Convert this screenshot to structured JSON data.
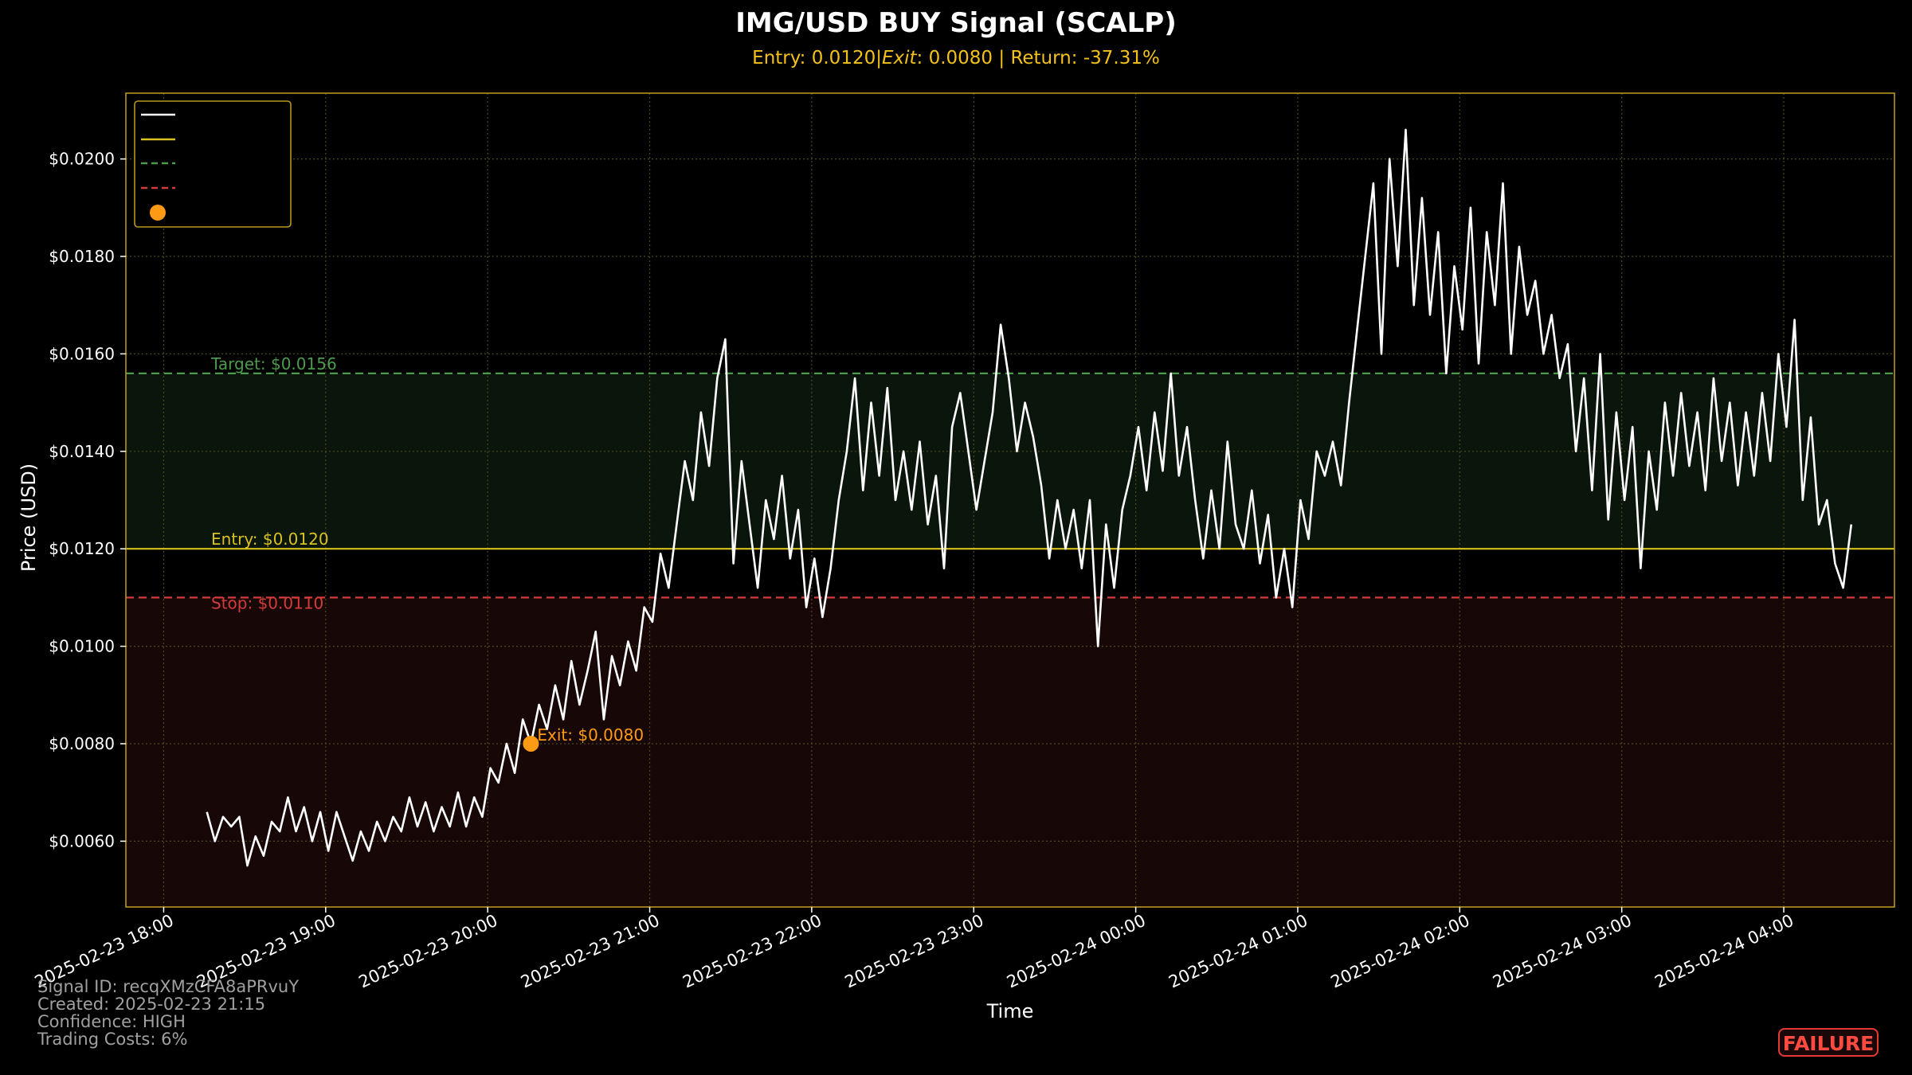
{
  "chart_data": {
    "type": "line",
    "title": "IMG/USD BUY Signal (SCALP)",
    "subtitle": {
      "entry_text": "Entry: 0.0120|",
      "exit_label": "Exit",
      "exit_text": ": 0.0080 | Return: -37.31%"
    },
    "xlabel": "Time",
    "ylabel": "Price (USD)",
    "x_range": [
      "2025-02-23 17:46",
      "2025-02-24 04:41"
    ],
    "ylim": [
      0.00465,
      0.02135
    ],
    "y_ticks": [
      0.006,
      0.008,
      0.01,
      0.012,
      0.014,
      0.016,
      0.018,
      0.02
    ],
    "y_tick_labels": [
      "$0.0060",
      "$0.0080",
      "$0.0100",
      "$0.0120",
      "$0.0140",
      "$0.0160",
      "$0.0180",
      "$0.0200"
    ],
    "x_ticks": [
      "2025-02-23 18:00",
      "2025-02-23 19:00",
      "2025-02-23 20:00",
      "2025-02-23 21:00",
      "2025-02-23 22:00",
      "2025-02-23 23:00",
      "2025-02-24 00:00",
      "2025-02-24 01:00",
      "2025-02-24 02:00",
      "2025-02-24 03:00",
      "2025-02-24 04:00"
    ],
    "x_tick_labels": [
      "2025-02-23 18:00",
      "2025-02-23 19:00",
      "2025-02-23 20:00",
      "2025-02-23 21:00",
      "2025-02-23 22:00",
      "2025-02-23 23:00",
      "2025-02-24 00:00",
      "2025-02-24 01:00",
      "2025-02-24 02:00",
      "2025-02-24 03:00",
      "2025-02-24 04:00"
    ],
    "grid": true,
    "legend": {
      "placement": "top-left",
      "entries": [
        "",
        "",
        "",
        "",
        ""
      ]
    },
    "levels": {
      "target": {
        "value": 0.0156,
        "label": "Target: $0.0156"
      },
      "entry": {
        "value": 0.012,
        "label": "Entry: $0.0120"
      },
      "stop": {
        "value": 0.011,
        "label": "Stop: $0.0110"
      }
    },
    "exit_point": {
      "x": "2025-02-23 20:16",
      "y": 0.008,
      "label": "Exit: $0.0080"
    },
    "series": [
      {
        "values": [
          [
            "2025-02-23 18:16",
            0.0066
          ],
          [
            "2025-02-23 18:19",
            0.006
          ],
          [
            "2025-02-23 18:22",
            0.0065
          ],
          [
            "2025-02-23 18:25",
            0.0063
          ],
          [
            "2025-02-23 18:28",
            0.0065
          ],
          [
            "2025-02-23 18:31",
            0.0055
          ],
          [
            "2025-02-23 18:34",
            0.0061
          ],
          [
            "2025-02-23 18:37",
            0.0057
          ],
          [
            "2025-02-23 18:40",
            0.0064
          ],
          [
            "2025-02-23 18:43",
            0.0062
          ],
          [
            "2025-02-23 18:46",
            0.0069
          ],
          [
            "2025-02-23 18:49",
            0.0062
          ],
          [
            "2025-02-23 18:52",
            0.0067
          ],
          [
            "2025-02-23 18:55",
            0.006
          ],
          [
            "2025-02-23 18:58",
            0.0066
          ],
          [
            "2025-02-23 19:01",
            0.0058
          ],
          [
            "2025-02-23 19:04",
            0.0066
          ],
          [
            "2025-02-23 19:07",
            0.0061
          ],
          [
            "2025-02-23 19:10",
            0.0056
          ],
          [
            "2025-02-23 19:13",
            0.0062
          ],
          [
            "2025-02-23 19:16",
            0.0058
          ],
          [
            "2025-02-23 19:19",
            0.0064
          ],
          [
            "2025-02-23 19:22",
            0.006
          ],
          [
            "2025-02-23 19:25",
            0.0065
          ],
          [
            "2025-02-23 19:28",
            0.0062
          ],
          [
            "2025-02-23 19:31",
            0.0069
          ],
          [
            "2025-02-23 19:34",
            0.0063
          ],
          [
            "2025-02-23 19:37",
            0.0068
          ],
          [
            "2025-02-23 19:40",
            0.0062
          ],
          [
            "2025-02-23 19:43",
            0.0067
          ],
          [
            "2025-02-23 19:46",
            0.0063
          ],
          [
            "2025-02-23 19:49",
            0.007
          ],
          [
            "2025-02-23 19:52",
            0.0063
          ],
          [
            "2025-02-23 19:55",
            0.0069
          ],
          [
            "2025-02-23 19:58",
            0.0065
          ],
          [
            "2025-02-23 20:01",
            0.0075
          ],
          [
            "2025-02-23 20:04",
            0.0072
          ],
          [
            "2025-02-23 20:07",
            0.008
          ],
          [
            "2025-02-23 20:10",
            0.0074
          ],
          [
            "2025-02-23 20:13",
            0.0085
          ],
          [
            "2025-02-23 20:16",
            0.008
          ],
          [
            "2025-02-23 20:19",
            0.0088
          ],
          [
            "2025-02-23 20:22",
            0.0083
          ],
          [
            "2025-02-23 20:25",
            0.0092
          ],
          [
            "2025-02-23 20:28",
            0.0085
          ],
          [
            "2025-02-23 20:31",
            0.0097
          ],
          [
            "2025-02-23 20:34",
            0.0088
          ],
          [
            "2025-02-23 20:37",
            0.0095
          ],
          [
            "2025-02-23 20:40",
            0.0103
          ],
          [
            "2025-02-23 20:43",
            0.0085
          ],
          [
            "2025-02-23 20:46",
            0.0098
          ],
          [
            "2025-02-23 20:49",
            0.0092
          ],
          [
            "2025-02-23 20:52",
            0.0101
          ],
          [
            "2025-02-23 20:55",
            0.0095
          ],
          [
            "2025-02-23 20:58",
            0.0108
          ],
          [
            "2025-02-23 21:01",
            0.0105
          ],
          [
            "2025-02-23 21:04",
            0.0119
          ],
          [
            "2025-02-23 21:07",
            0.0112
          ],
          [
            "2025-02-23 21:10",
            0.0125
          ],
          [
            "2025-02-23 21:13",
            0.0138
          ],
          [
            "2025-02-23 21:16",
            0.013
          ],
          [
            "2025-02-23 21:19",
            0.0148
          ],
          [
            "2025-02-23 21:22",
            0.0137
          ],
          [
            "2025-02-23 21:25",
            0.0155
          ],
          [
            "2025-02-23 21:28",
            0.0163
          ],
          [
            "2025-02-23 21:31",
            0.0117
          ],
          [
            "2025-02-23 21:34",
            0.0138
          ],
          [
            "2025-02-23 21:37",
            0.0125
          ],
          [
            "2025-02-23 21:40",
            0.0112
          ],
          [
            "2025-02-23 21:43",
            0.013
          ],
          [
            "2025-02-23 21:46",
            0.0122
          ],
          [
            "2025-02-23 21:49",
            0.0135
          ],
          [
            "2025-02-23 21:52",
            0.0118
          ],
          [
            "2025-02-23 21:55",
            0.0128
          ],
          [
            "2025-02-23 21:58",
            0.0108
          ],
          [
            "2025-02-23 22:01",
            0.0118
          ],
          [
            "2025-02-23 22:04",
            0.0106
          ],
          [
            "2025-02-23 22:07",
            0.0116
          ],
          [
            "2025-02-23 22:10",
            0.013
          ],
          [
            "2025-02-23 22:13",
            0.014
          ],
          [
            "2025-02-23 22:16",
            0.0155
          ],
          [
            "2025-02-23 22:19",
            0.0132
          ],
          [
            "2025-02-23 22:22",
            0.015
          ],
          [
            "2025-02-23 22:25",
            0.0135
          ],
          [
            "2025-02-23 22:28",
            0.0153
          ],
          [
            "2025-02-23 22:31",
            0.013
          ],
          [
            "2025-02-23 22:34",
            0.014
          ],
          [
            "2025-02-23 22:37",
            0.0128
          ],
          [
            "2025-02-23 22:40",
            0.0142
          ],
          [
            "2025-02-23 22:43",
            0.0125
          ],
          [
            "2025-02-23 22:46",
            0.0135
          ],
          [
            "2025-02-23 22:49",
            0.0116
          ],
          [
            "2025-02-23 22:52",
            0.0145
          ],
          [
            "2025-02-23 22:55",
            0.0152
          ],
          [
            "2025-02-23 22:58",
            0.014
          ],
          [
            "2025-02-23 23:01",
            0.0128
          ],
          [
            "2025-02-23 23:04",
            0.0138
          ],
          [
            "2025-02-23 23:07",
            0.0148
          ],
          [
            "2025-02-23 23:10",
            0.0166
          ],
          [
            "2025-02-23 23:13",
            0.0155
          ],
          [
            "2025-02-23 23:16",
            0.014
          ],
          [
            "2025-02-23 23:19",
            0.015
          ],
          [
            "2025-02-23 23:22",
            0.0143
          ],
          [
            "2025-02-23 23:25",
            0.0133
          ],
          [
            "2025-02-23 23:28",
            0.0118
          ],
          [
            "2025-02-23 23:31",
            0.013
          ],
          [
            "2025-02-23 23:34",
            0.012
          ],
          [
            "2025-02-23 23:37",
            0.0128
          ],
          [
            "2025-02-23 23:40",
            0.0116
          ],
          [
            "2025-02-23 23:43",
            0.013
          ],
          [
            "2025-02-23 23:46",
            0.01
          ],
          [
            "2025-02-23 23:49",
            0.0125
          ],
          [
            "2025-02-23 23:52",
            0.0112
          ],
          [
            "2025-02-23 23:55",
            0.0128
          ],
          [
            "2025-02-23 23:58",
            0.0135
          ],
          [
            "2025-02-24 00:01",
            0.0145
          ],
          [
            "2025-02-24 00:04",
            0.0132
          ],
          [
            "2025-02-24 00:07",
            0.0148
          ],
          [
            "2025-02-24 00:10",
            0.0136
          ],
          [
            "2025-02-24 00:13",
            0.0156
          ],
          [
            "2025-02-24 00:16",
            0.0135
          ],
          [
            "2025-02-24 00:19",
            0.0145
          ],
          [
            "2025-02-24 00:22",
            0.013
          ],
          [
            "2025-02-24 00:25",
            0.0118
          ],
          [
            "2025-02-24 00:28",
            0.0132
          ],
          [
            "2025-02-24 00:31",
            0.012
          ],
          [
            "2025-02-24 00:34",
            0.0142
          ],
          [
            "2025-02-24 00:37",
            0.0125
          ],
          [
            "2025-02-24 00:40",
            0.012
          ],
          [
            "2025-02-24 00:43",
            0.0132
          ],
          [
            "2025-02-24 00:46",
            0.0117
          ],
          [
            "2025-02-24 00:49",
            0.0127
          ],
          [
            "2025-02-24 00:52",
            0.011
          ],
          [
            "2025-02-24 00:55",
            0.012
          ],
          [
            "2025-02-24 00:58",
            0.0108
          ],
          [
            "2025-02-24 01:01",
            0.013
          ],
          [
            "2025-02-24 01:04",
            0.0122
          ],
          [
            "2025-02-24 01:07",
            0.014
          ],
          [
            "2025-02-24 01:10",
            0.0135
          ],
          [
            "2025-02-24 01:13",
            0.0142
          ],
          [
            "2025-02-24 01:16",
            0.0133
          ],
          [
            "2025-02-24 01:19",
            0.015
          ],
          [
            "2025-02-24 01:22",
            0.0165
          ],
          [
            "2025-02-24 01:25",
            0.018
          ],
          [
            "2025-02-24 01:28",
            0.0195
          ],
          [
            "2025-02-24 01:31",
            0.016
          ],
          [
            "2025-02-24 01:34",
            0.02
          ],
          [
            "2025-02-24 01:37",
            0.0178
          ],
          [
            "2025-02-24 01:40",
            0.0206
          ],
          [
            "2025-02-24 01:43",
            0.017
          ],
          [
            "2025-02-24 01:46",
            0.0192
          ],
          [
            "2025-02-24 01:49",
            0.0168
          ],
          [
            "2025-02-24 01:52",
            0.0185
          ],
          [
            "2025-02-24 01:55",
            0.0156
          ],
          [
            "2025-02-24 01:58",
            0.0178
          ],
          [
            "2025-02-24 02:01",
            0.0165
          ],
          [
            "2025-02-24 02:04",
            0.019
          ],
          [
            "2025-02-24 02:07",
            0.0158
          ],
          [
            "2025-02-24 02:10",
            0.0185
          ],
          [
            "2025-02-24 02:13",
            0.017
          ],
          [
            "2025-02-24 02:16",
            0.0195
          ],
          [
            "2025-02-24 02:19",
            0.016
          ],
          [
            "2025-02-24 02:22",
            0.0182
          ],
          [
            "2025-02-24 02:25",
            0.0168
          ],
          [
            "2025-02-24 02:28",
            0.0175
          ],
          [
            "2025-02-24 02:31",
            0.016
          ],
          [
            "2025-02-24 02:34",
            0.0168
          ],
          [
            "2025-02-24 02:37",
            0.0155
          ],
          [
            "2025-02-24 02:40",
            0.0162
          ],
          [
            "2025-02-24 02:43",
            0.014
          ],
          [
            "2025-02-24 02:46",
            0.0155
          ],
          [
            "2025-02-24 02:49",
            0.0132
          ],
          [
            "2025-02-24 02:52",
            0.016
          ],
          [
            "2025-02-24 02:55",
            0.0126
          ],
          [
            "2025-02-24 02:58",
            0.0148
          ],
          [
            "2025-02-24 03:01",
            0.013
          ],
          [
            "2025-02-24 03:04",
            0.0145
          ],
          [
            "2025-02-24 03:07",
            0.0116
          ],
          [
            "2025-02-24 03:10",
            0.014
          ],
          [
            "2025-02-24 03:13",
            0.0128
          ],
          [
            "2025-02-24 03:16",
            0.015
          ],
          [
            "2025-02-24 03:19",
            0.0135
          ],
          [
            "2025-02-24 03:22",
            0.0152
          ],
          [
            "2025-02-24 03:25",
            0.0137
          ],
          [
            "2025-02-24 03:28",
            0.0148
          ],
          [
            "2025-02-24 03:31",
            0.0132
          ],
          [
            "2025-02-24 03:34",
            0.0155
          ],
          [
            "2025-02-24 03:37",
            0.0138
          ],
          [
            "2025-02-24 03:40",
            0.015
          ],
          [
            "2025-02-24 03:43",
            0.0133
          ],
          [
            "2025-02-24 03:46",
            0.0148
          ],
          [
            "2025-02-24 03:49",
            0.0135
          ],
          [
            "2025-02-24 03:52",
            0.0152
          ],
          [
            "2025-02-24 03:55",
            0.0138
          ],
          [
            "2025-02-24 03:58",
            0.016
          ],
          [
            "2025-02-24 04:01",
            0.0145
          ],
          [
            "2025-02-24 04:04",
            0.0167
          ],
          [
            "2025-02-24 04:07",
            0.013
          ],
          [
            "2025-02-24 04:10",
            0.0147
          ],
          [
            "2025-02-24 04:13",
            0.0125
          ],
          [
            "2025-02-24 04:16",
            0.013
          ],
          [
            "2025-02-24 04:19",
            0.0117
          ],
          [
            "2025-02-24 04:22",
            0.0112
          ],
          [
            "2025-02-24 04:25",
            0.0125
          ]
        ]
      }
    ]
  },
  "info": {
    "signal_id": "Signal ID: recqXMzCFA8aPRvuY",
    "created": "Created: 2025-02-23 21:15",
    "confidence": "Confidence: HIGH",
    "trading_costs": "Trading Costs: 6%"
  },
  "status": {
    "label": "FAILURE",
    "color": "#e53935"
  },
  "colors": {
    "background": "#000000",
    "frame": "#b8961e",
    "price_line": "#ffffff",
    "entry": "#d9c21f",
    "target": "#4c9a4c",
    "stop": "#d43b3b",
    "exit": "#ff9a14",
    "target_zone": "#0a150b",
    "stop_zone": "#170707",
    "subtitle": "#f2c21b",
    "grid": "#4e4a1c"
  }
}
